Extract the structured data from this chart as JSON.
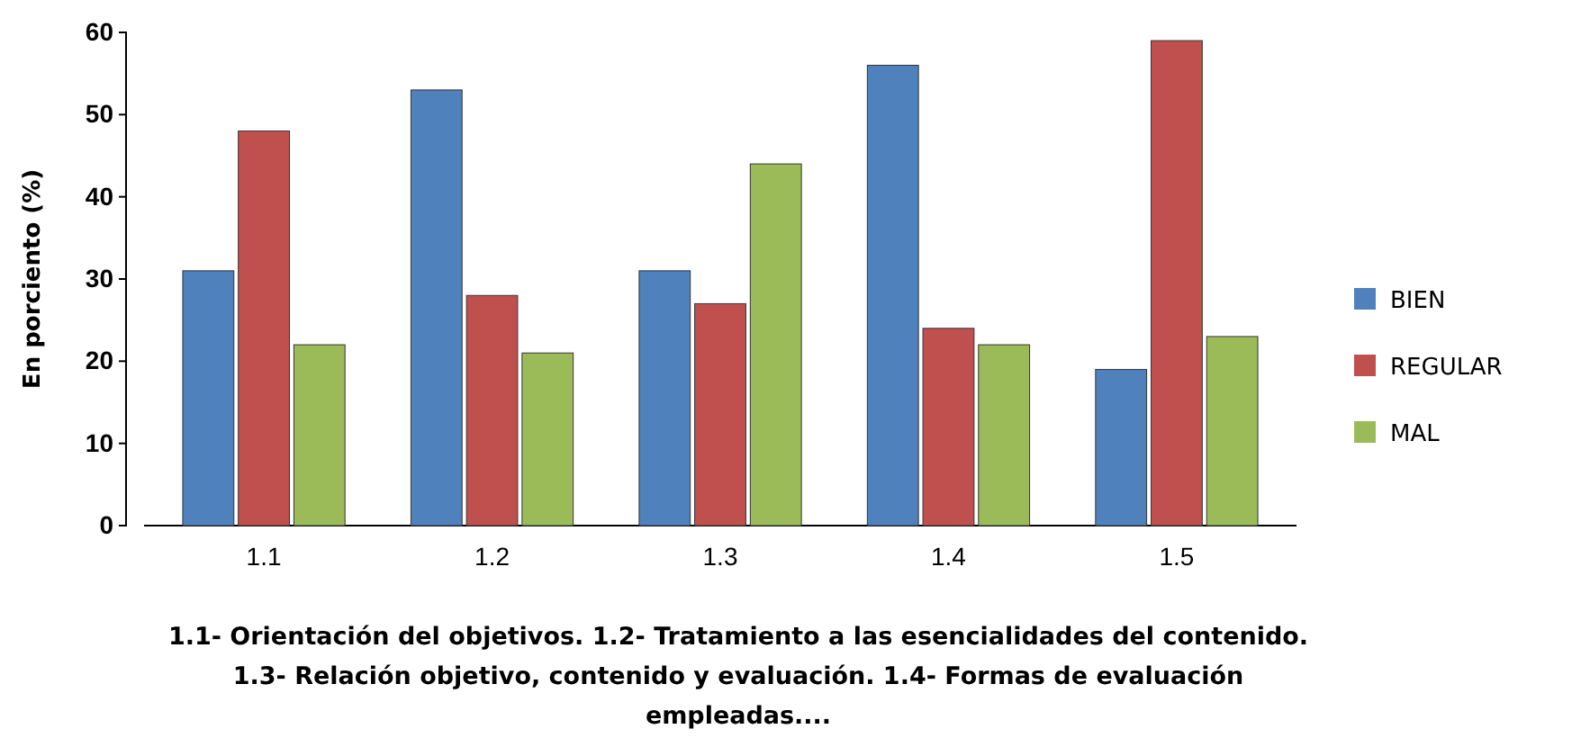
{
  "chart_data": {
    "type": "bar",
    "ylabel": "En porciento (%)",
    "categories": [
      "1.1",
      "1.2",
      "1.3",
      "1.4",
      "1.5"
    ],
    "series": [
      {
        "name": "BIEN",
        "color": "#4f81bd",
        "values": [
          31,
          53,
          31,
          56,
          19
        ]
      },
      {
        "name": "REGULAR",
        "color": "#c0504d",
        "values": [
          48,
          28,
          27,
          24,
          59
        ]
      },
      {
        "name": "MAL",
        "color": "#9bbb59",
        "values": [
          22,
          21,
          44,
          22,
          23
        ]
      }
    ],
    "ylim": [
      0,
      60
    ],
    "yticks": [
      0,
      10,
      20,
      30,
      40,
      50,
      60
    ],
    "legend": "right",
    "annotations": [
      "1.1- Orientación del objetivos.   1.2- Tratamiento a las esencialidades  del contenido. 1.3-  Relación objetivo, contenido y evaluación.  1.4- Formas de evaluación  empleadas...."
    ]
  }
}
